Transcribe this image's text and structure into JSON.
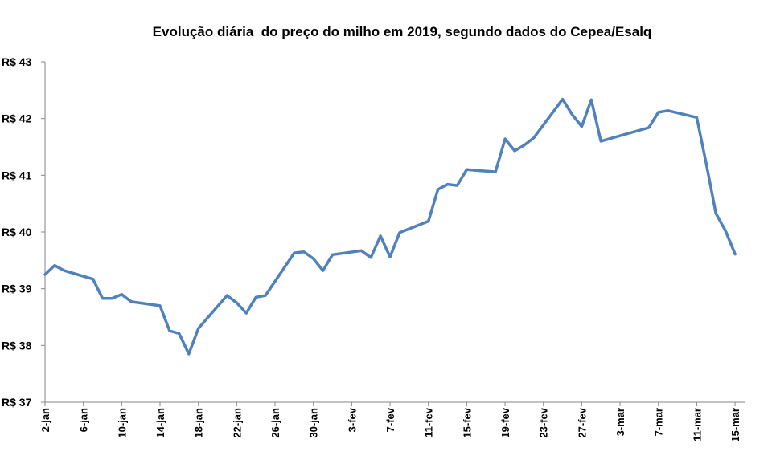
{
  "chart_data": {
    "type": "line",
    "title": "Evolução diária  do preço do milho em 2019, segundo dados do Cepea/Esalq",
    "xlabel": "",
    "ylabel": "",
    "ylim": [
      37,
      43
    ],
    "y_ticks": [
      {
        "value": 37,
        "label": "R$ 37"
      },
      {
        "value": 38,
        "label": "R$ 38"
      },
      {
        "value": 39,
        "label": "R$ 39"
      },
      {
        "value": 40,
        "label": "R$ 40"
      },
      {
        "value": 41,
        "label": "R$ 41"
      },
      {
        "value": 42,
        "label": "R$ 42"
      },
      {
        "value": 43,
        "label": "R$ 43"
      }
    ],
    "x_ticks": [
      "2-jan",
      "6-jan",
      "10-jan",
      "14-jan",
      "18-jan",
      "22-jan",
      "26-jan",
      "30-jan",
      "3-fev",
      "7-fev",
      "11-fev",
      "15-fev",
      "19-fev",
      "23-fev",
      "27-fev",
      "3-mar",
      "7-mar",
      "11-mar",
      "15-mar"
    ],
    "grid": false,
    "legend": "none",
    "line_color": "#4f81bd",
    "series": [
      {
        "values": [
          [
            "2-jan",
            39.25
          ],
          [
            "3-jan",
            39.41
          ],
          [
            "4-jan",
            39.32
          ],
          [
            "7-jan",
            39.17
          ],
          [
            "8-jan",
            38.83
          ],
          [
            "9-jan",
            38.83
          ],
          [
            "10-jan",
            38.9
          ],
          [
            "11-jan",
            38.77
          ],
          [
            "14-jan",
            38.7
          ],
          [
            "15-jan",
            38.26
          ],
          [
            "16-jan",
            38.21
          ],
          [
            "17-jan",
            37.85
          ],
          [
            "18-jan",
            38.3
          ],
          [
            "21-jan",
            38.88
          ],
          [
            "22-jan",
            38.75
          ],
          [
            "23-jan",
            38.57
          ],
          [
            "24-jan",
            38.85
          ],
          [
            "25-jan",
            38.88
          ],
          [
            "28-jan",
            39.63
          ],
          [
            "29-jan",
            39.65
          ],
          [
            "30-jan",
            39.53
          ],
          [
            "31-jan",
            39.32
          ],
          [
            "1-fev",
            39.6
          ],
          [
            "4-fev",
            39.67
          ],
          [
            "5-fev",
            39.55
          ],
          [
            "6-fev",
            39.93
          ],
          [
            "7-fev",
            39.56
          ],
          [
            "8-fev",
            39.99
          ],
          [
            "11-fev",
            40.19
          ],
          [
            "12-fev",
            40.75
          ],
          [
            "13-fev",
            40.84
          ],
          [
            "14-fev",
            40.82
          ],
          [
            "15-fev",
            41.1
          ],
          [
            "18-fev",
            41.06
          ],
          [
            "19-fev",
            41.64
          ],
          [
            "20-fev",
            41.43
          ],
          [
            "21-fev",
            41.53
          ],
          [
            "22-fev",
            41.66
          ],
          [
            "25-fev",
            42.34
          ],
          [
            "26-fev",
            42.07
          ],
          [
            "27-fev",
            41.86
          ],
          [
            "28-fev",
            42.33
          ],
          [
            "1-mar",
            41.6
          ],
          [
            "6-mar",
            41.84
          ],
          [
            "7-mar",
            42.11
          ],
          [
            "8-mar",
            42.14
          ],
          [
            "11-mar",
            42.02
          ],
          [
            "12-mar",
            41.2
          ],
          [
            "13-mar",
            40.33
          ],
          [
            "14-mar",
            40.02
          ],
          [
            "15-mar",
            39.61
          ]
        ]
      }
    ]
  }
}
